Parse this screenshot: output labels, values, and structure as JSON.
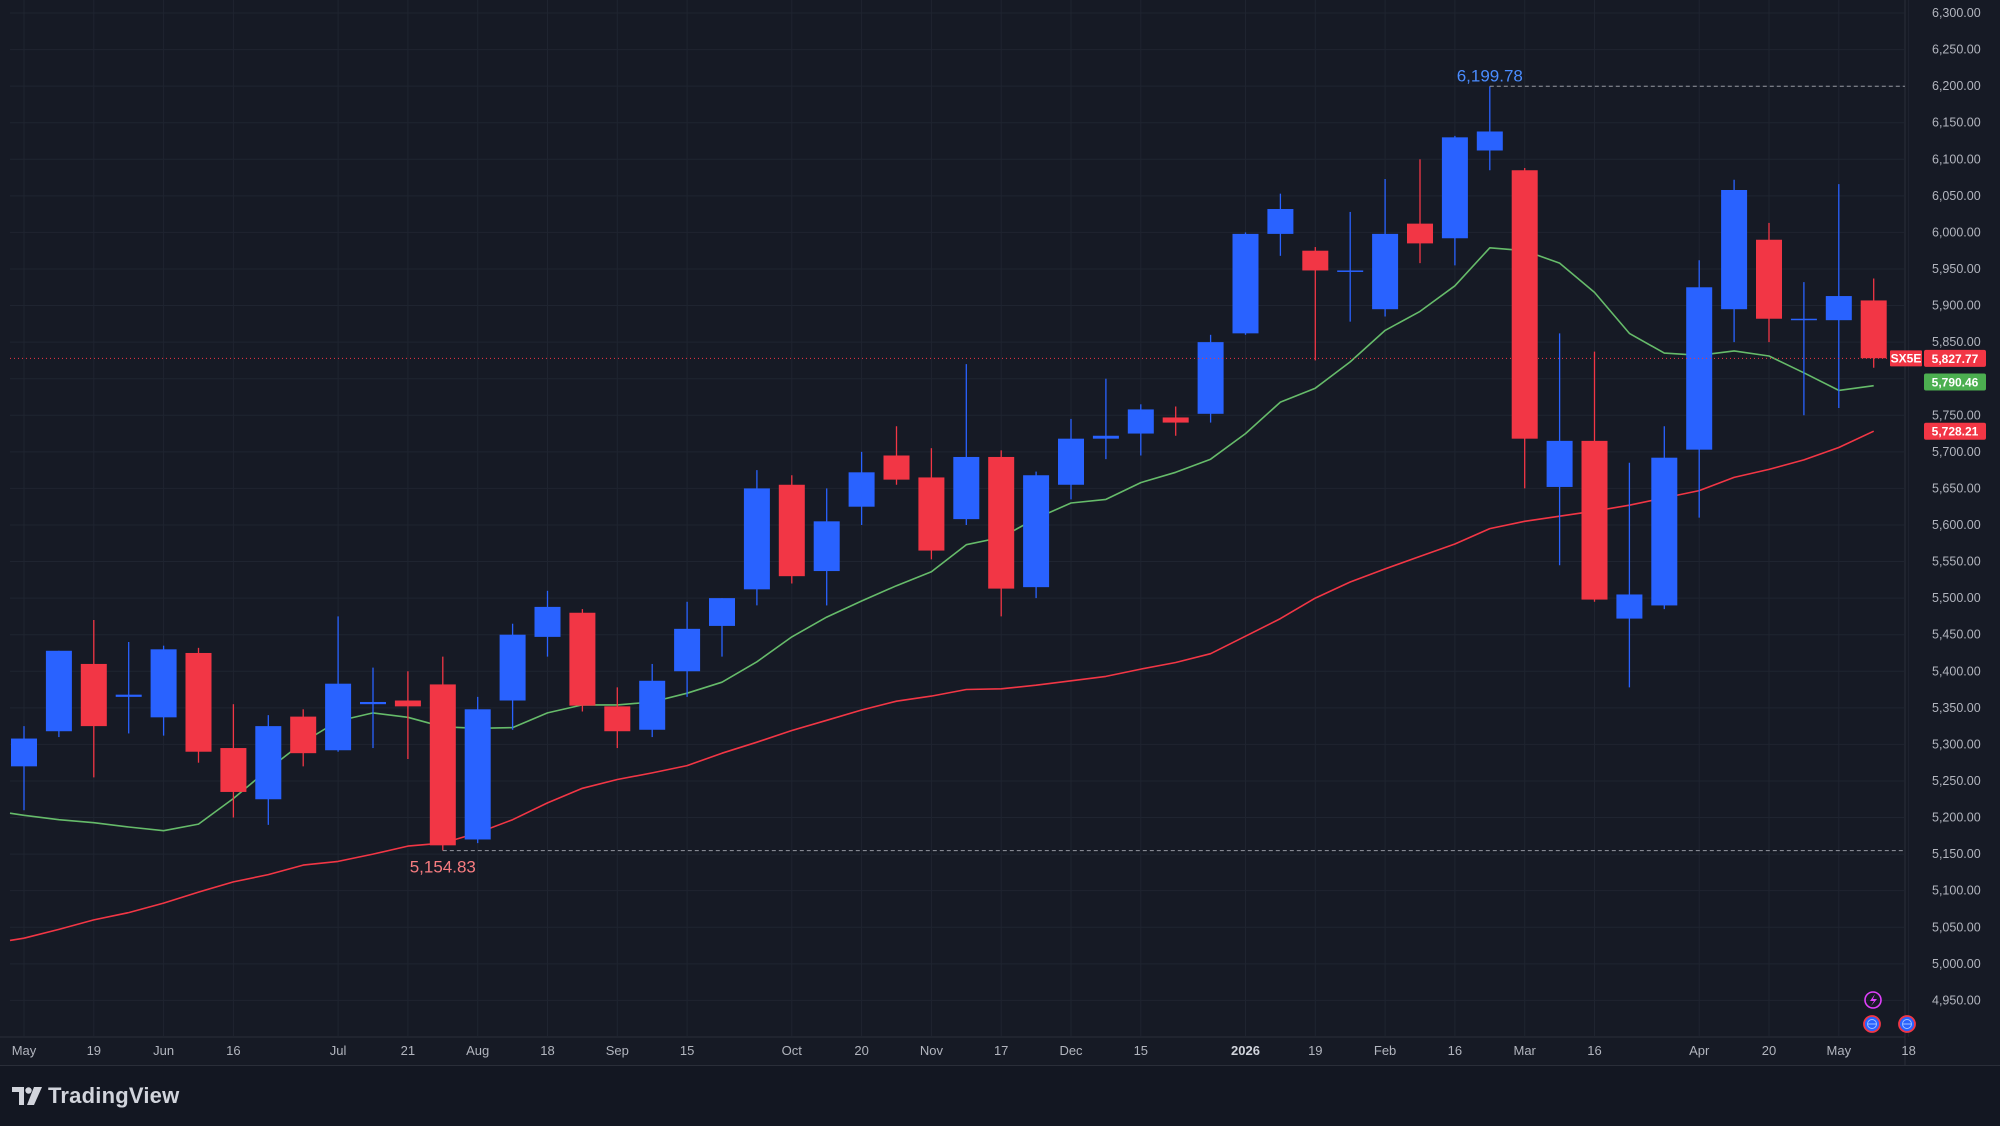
{
  "app": {
    "brand": "TradingView"
  },
  "colors": {
    "background": "#161a25",
    "up": "#2962ff",
    "down": "#f23645",
    "ma_fast": "#66bb6a",
    "ma_slow": "#f23645",
    "grid": "#1f2430",
    "axis_text": "#b2b5be",
    "high_label": "#4a8cff",
    "low_label": "#f77c80"
  },
  "icons": [
    "tradingview-logo-icon",
    "lightning-icon",
    "globe-icon",
    "globe-icon"
  ],
  "chart_data": {
    "type": "candlestick",
    "interval": "1W",
    "ylim": [
      4900,
      6300
    ],
    "y_ticks": [
      4950,
      5000,
      5050,
      5100,
      5150,
      5200,
      5250,
      5300,
      5350,
      5400,
      5450,
      5500,
      5550,
      5600,
      5650,
      5700,
      5750,
      5800,
      5850,
      5900,
      5950,
      6000,
      6050,
      6100,
      6150,
      6200,
      6250,
      6300
    ],
    "y_tick_labels": [
      "4,950.00",
      "5,000.00",
      "5,050.00",
      "5,100.00",
      "5,150.00",
      "5,200.00",
      "5,250.00",
      "5,300.00",
      "5,350.00",
      "5,400.00",
      "5,450.00",
      "5,500.00",
      "5,550.00",
      "5,600.00",
      "5,650.00",
      "5,700.00",
      "5,750.00",
      "5,800.00",
      "5,850.00",
      "5,900.00",
      "5,950.00",
      "6,000.00",
      "6,050.00",
      "6,100.00",
      "6,150.00",
      "6,200.00",
      "6,250.00",
      "6,300.00"
    ],
    "x_labels": [
      {
        "i": 0,
        "label": "May"
      },
      {
        "i": 2,
        "label": "19"
      },
      {
        "i": 4,
        "label": "Jun"
      },
      {
        "i": 6,
        "label": "16"
      },
      {
        "i": 9,
        "label": "Jul"
      },
      {
        "i": 11,
        "label": "21"
      },
      {
        "i": 13,
        "label": "Aug"
      },
      {
        "i": 15,
        "label": "18"
      },
      {
        "i": 17,
        "label": "Sep"
      },
      {
        "i": 19,
        "label": "15"
      },
      {
        "i": 22,
        "label": "Oct"
      },
      {
        "i": 24,
        "label": "20"
      },
      {
        "i": 26,
        "label": "Nov"
      },
      {
        "i": 28,
        "label": "17"
      },
      {
        "i": 30,
        "label": "Dec"
      },
      {
        "i": 32,
        "label": "15"
      },
      {
        "i": 35,
        "label": "2026",
        "bold": true
      },
      {
        "i": 37,
        "label": "19"
      },
      {
        "i": 39,
        "label": "Feb"
      },
      {
        "i": 41,
        "label": "16"
      },
      {
        "i": 43,
        "label": "Mar"
      },
      {
        "i": 45,
        "label": "16"
      },
      {
        "i": 48,
        "label": "Apr"
      },
      {
        "i": 50,
        "label": "20"
      },
      {
        "i": 52,
        "label": "May"
      },
      {
        "i": 54,
        "label": "18"
      }
    ],
    "candles": [
      {
        "o": 5270,
        "h": 5325,
        "l": 5210,
        "c": 5308
      },
      {
        "o": 5318,
        "h": 5428,
        "l": 5310,
        "c": 5428
      },
      {
        "o": 5410,
        "h": 5470,
        "l": 5255,
        "c": 5325
      },
      {
        "o": 5365,
        "h": 5440,
        "l": 5315,
        "c": 5368
      },
      {
        "o": 5337,
        "h": 5435,
        "l": 5312,
        "c": 5430
      },
      {
        "o": 5425,
        "h": 5432,
        "l": 5275,
        "c": 5290
      },
      {
        "o": 5295,
        "h": 5355,
        "l": 5200,
        "c": 5235
      },
      {
        "o": 5225,
        "h": 5340,
        "l": 5190,
        "c": 5325
      },
      {
        "o": 5338,
        "h": 5348,
        "l": 5270,
        "c": 5288
      },
      {
        "o": 5292,
        "h": 5475,
        "l": 5290,
        "c": 5383
      },
      {
        "o": 5355,
        "h": 5405,
        "l": 5295,
        "c": 5358
      },
      {
        "o": 5360,
        "h": 5400,
        "l": 5280,
        "c": 5352
      },
      {
        "o": 5382,
        "h": 5420,
        "l": 5155,
        "c": 5162
      },
      {
        "o": 5170,
        "h": 5365,
        "l": 5165,
        "c": 5348
      },
      {
        "o": 5360,
        "h": 5465,
        "l": 5320,
        "c": 5450
      },
      {
        "o": 5447,
        "h": 5510,
        "l": 5420,
        "c": 5488
      },
      {
        "o": 5480,
        "h": 5485,
        "l": 5345,
        "c": 5353
      },
      {
        "o": 5352,
        "h": 5378,
        "l": 5295,
        "c": 5318
      },
      {
        "o": 5320,
        "h": 5410,
        "l": 5310,
        "c": 5387
      },
      {
        "o": 5400,
        "h": 5495,
        "l": 5365,
        "c": 5458
      },
      {
        "o": 5462,
        "h": 5500,
        "l": 5420,
        "c": 5500
      },
      {
        "o": 5512,
        "h": 5675,
        "l": 5490,
        "c": 5650
      },
      {
        "o": 5655,
        "h": 5668,
        "l": 5520,
        "c": 5530
      },
      {
        "o": 5537,
        "h": 5650,
        "l": 5490,
        "c": 5605
      },
      {
        "o": 5625,
        "h": 5700,
        "l": 5600,
        "c": 5672
      },
      {
        "o": 5695,
        "h": 5735,
        "l": 5655,
        "c": 5662
      },
      {
        "o": 5665,
        "h": 5705,
        "l": 5553,
        "c": 5565
      },
      {
        "o": 5608,
        "h": 5820,
        "l": 5600,
        "c": 5693
      },
      {
        "o": 5693,
        "h": 5702,
        "l": 5475,
        "c": 5513
      },
      {
        "o": 5515,
        "h": 5673,
        "l": 5500,
        "c": 5668
      },
      {
        "o": 5655,
        "h": 5745,
        "l": 5635,
        "c": 5718
      },
      {
        "o": 5718,
        "h": 5800,
        "l": 5690,
        "c": 5722
      },
      {
        "o": 5725,
        "h": 5765,
        "l": 5695,
        "c": 5758
      },
      {
        "o": 5747,
        "h": 5762,
        "l": 5722,
        "c": 5740
      },
      {
        "o": 5752,
        "h": 5860,
        "l": 5740,
        "c": 5850
      },
      {
        "o": 5862,
        "h": 6000,
        "l": 5860,
        "c": 5998
      },
      {
        "o": 5998,
        "h": 6053,
        "l": 5968,
        "c": 6032
      },
      {
        "o": 5975,
        "h": 5980,
        "l": 5825,
        "c": 5948
      },
      {
        "o": 5948,
        "h": 6028,
        "l": 5878,
        "c": 5948
      },
      {
        "o": 5895,
        "h": 6073,
        "l": 5885,
        "c": 5998
      },
      {
        "o": 6012,
        "h": 6100,
        "l": 5958,
        "c": 5985
      },
      {
        "o": 5992,
        "h": 6132,
        "l": 5955,
        "c": 6130
      },
      {
        "o": 6112,
        "h": 6199.78,
        "l": 6085,
        "c": 6138
      },
      {
        "o": 6085,
        "h": 6088,
        "l": 5650,
        "c": 5718
      },
      {
        "o": 5652,
        "h": 5862,
        "l": 5545,
        "c": 5715
      },
      {
        "o": 5715,
        "h": 5837,
        "l": 5495,
        "c": 5498
      },
      {
        "o": 5472,
        "h": 5685,
        "l": 5378,
        "c": 5505
      },
      {
        "o": 5490,
        "h": 5735,
        "l": 5485,
        "c": 5692
      },
      {
        "o": 5703,
        "h": 5962,
        "l": 5610,
        "c": 5925
      },
      {
        "o": 5895,
        "h": 6072,
        "l": 5850,
        "c": 6058
      },
      {
        "o": 5990,
        "h": 6013,
        "l": 5850,
        "c": 5882
      },
      {
        "o": 5880,
        "h": 5932,
        "l": 5750,
        "c": 5882
      },
      {
        "o": 5880,
        "h": 6066,
        "l": 5760,
        "c": 5913
      },
      {
        "o": 5907,
        "h": 5937,
        "l": 5815,
        "c": 5828
      }
    ],
    "ma_fast": [
      5203,
      5197,
      5193,
      5187,
      5182,
      5191,
      5226,
      5266,
      5303,
      5332,
      5343,
      5337,
      5324,
      5322,
      5323,
      5343,
      5354,
      5354,
      5358,
      5370,
      5385,
      5413,
      5447,
      5474,
      5496,
      5517,
      5536,
      5573,
      5583,
      5609,
      5630,
      5635,
      5658,
      5672,
      5690,
      5725,
      5768,
      5787,
      5823,
      5866,
      5892,
      5927,
      5979,
      5975,
      5958,
      5918,
      5862,
      5835,
      5832,
      5838,
      5831,
      5808,
      5784,
      5790.46
    ],
    "ma_slow": [
      5035,
      5047,
      5060,
      5070,
      5083,
      5098,
      5112,
      5122,
      5135,
      5140,
      5150,
      5161,
      5165,
      5179,
      5197,
      5220,
      5240,
      5252,
      5261,
      5271,
      5288,
      5303,
      5319,
      5333,
      5347,
      5359,
      5366,
      5375,
      5376,
      5381,
      5387,
      5393,
      5403,
      5412,
      5424,
      5448,
      5472,
      5500,
      5522,
      5540,
      5557,
      5574,
      5595,
      5605,
      5612,
      5619,
      5627,
      5637,
      5647,
      5665,
      5676,
      5689,
      5706,
      5728.21
    ],
    "high_marker": {
      "label": "6,199.78",
      "value": 6199.78,
      "candle_index": 42
    },
    "low_marker": {
      "label": "5,154.83",
      "value": 5154.83,
      "candle_index": 12
    },
    "price_tags": {
      "symbol": "SX5E",
      "last": "5,827.77",
      "last_value": 5827.77,
      "ma_fast": "5,790.46",
      "ma_fast_value": 5790.46,
      "ma_slow": "5,728.21",
      "ma_slow_value": 5728.21
    }
  }
}
